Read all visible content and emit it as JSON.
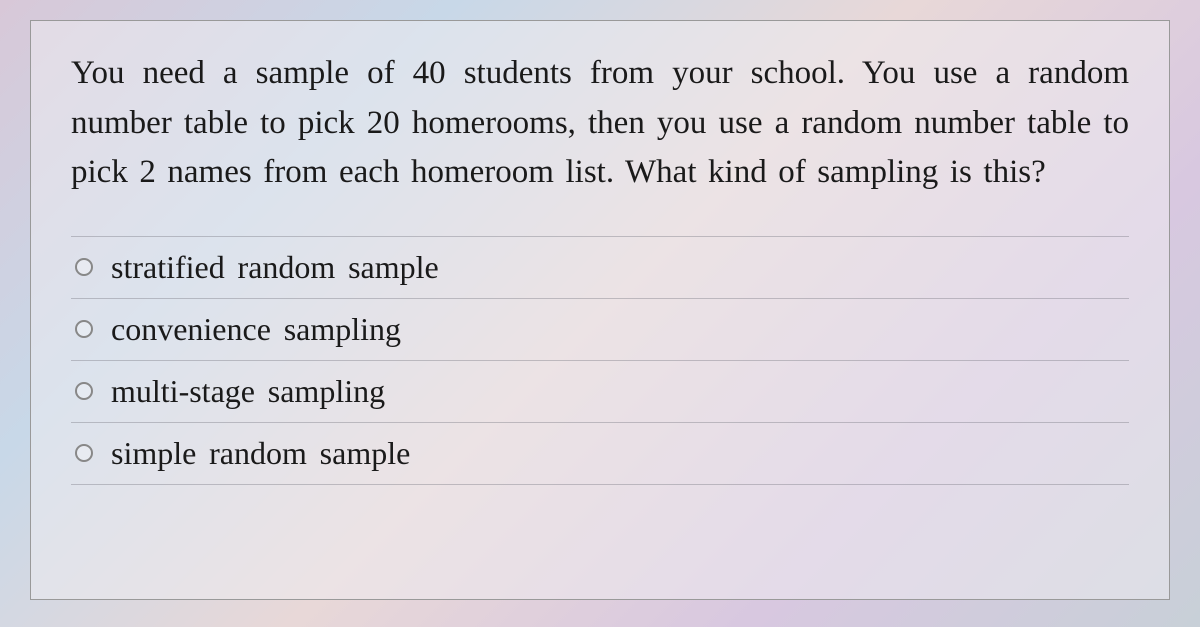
{
  "question": {
    "text": "You need a sample of 40 students from your school.  You use a random number table to pick 20 homerooms, then you use a random number table to pick 2 names from each homeroom list.  What kind of sampling is this?",
    "options": [
      {
        "label": "stratified random sample",
        "selected": false
      },
      {
        "label": "convenience sampling",
        "selected": false
      },
      {
        "label": "multi-stage sampling",
        "selected": false
      },
      {
        "label": "simple random sample",
        "selected": false
      }
    ]
  },
  "styling": {
    "background_gradient": [
      "#d8c8d8",
      "#c8d8e8",
      "#e8d8d8",
      "#d8c8e0",
      "#c8d0d8"
    ],
    "card_border_color": "#999999",
    "text_color": "#1a1a1a",
    "question_fontsize": 33,
    "option_fontsize": 32,
    "radio_border_color": "#888888",
    "divider_color": "rgba(120,120,130,0.4)",
    "font_family": "Georgia, Times New Roman, serif"
  }
}
